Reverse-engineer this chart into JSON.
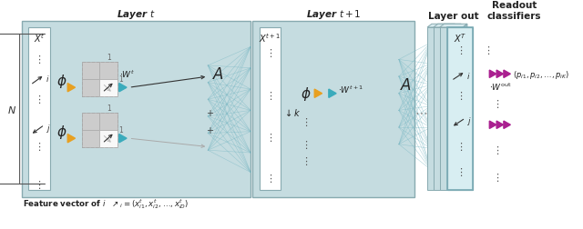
{
  "fig_width": 6.4,
  "fig_height": 2.53,
  "dpi": 100,
  "bg_color": "#ffffff",
  "panel_bg": "#c5dce0",
  "orange_tri": "#e8a020",
  "blue_tri": "#3aabbc",
  "purple_tri": "#aa2090",
  "layer_t_label": "Layer $t$",
  "layer_t1_label": "Layer $t+1$",
  "layer_out_label": "Layer out",
  "readout_label": "Readout\nclassifiers",
  "Xt_label": "$X^t$",
  "Xt1_label": "$X^{t+1}$",
  "XT_label": "$X^T$",
  "N_label": "$N$",
  "phi_label": "$\\phi$",
  "Wt_label": "$\\cdot W^t$",
  "Wt1_label": "$\\cdot W^{t+1}$",
  "Wout_label": "$\\cdot W^{\\mathrm{out}}$",
  "A_label": "$A$",
  "k_label": "$\\downarrow k$",
  "readout_eq": "$(p_{i1}, p_{i2}, \\ldots, p_{iK})$",
  "feature_text": "Feature vector of $i$  $\\nearrow_i = (x^t_{i1}, x^t_{i2}, \\ldots, x^t_{iD})$"
}
